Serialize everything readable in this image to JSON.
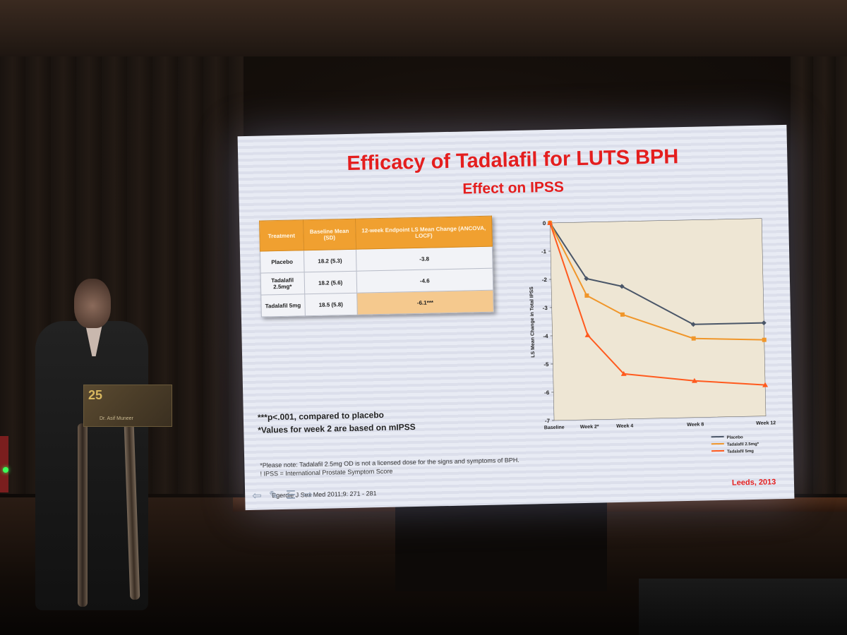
{
  "slide": {
    "title": "Efficacy of Tadalafil for LUTS BPH",
    "subtitle": "Effect on IPSS",
    "footnote_significance": "***p<.001, compared to placebo",
    "footnote_mipss": "*Values for week 2 are based on mIPSS",
    "note_dose": "*Please note: Tadalafil 2.5mg OD is not a licensed dose for the signs and symptoms of BPH.",
    "note_ipss": "! IPSS = International Prostate Symptom Score",
    "reference": "Egerdie J Sex Med 2011;9: 271 - 281",
    "credit": "Leeds, 2013"
  },
  "table": {
    "headers": [
      "Treatment",
      "Baseline Mean (SD)",
      "12-week Endpoint LS Mean Change (ANCOVA, LOCF)"
    ],
    "rows": [
      [
        "Placebo",
        "18.2 (5.3)",
        "-3.8"
      ],
      [
        "Tadalafil 2.5mg*",
        "18.2 (5.6)",
        "-4.6"
      ],
      [
        "Tadalafil 5mg",
        "18.5 (5.8)",
        "-6.1***"
      ]
    ]
  },
  "podium": {
    "sign_number": "25",
    "sign_name": "Dr. Asif Muneer"
  },
  "chart_data": {
    "type": "line",
    "x": [
      "Baseline",
      "Week 2*",
      "Week 4",
      "Week 8",
      "Week 12"
    ],
    "x_weeks": [
      0,
      2,
      4,
      8,
      12
    ],
    "ylabel": "LS Mean Change in Total IPSS",
    "ylim": [
      -7,
      0
    ],
    "yticks": [
      0,
      -1,
      -2,
      -3,
      -4,
      -5,
      -6,
      -7
    ],
    "legend_position": "bottom-right",
    "series": [
      {
        "name": "Placebo",
        "color": "#4a5668",
        "marker": "diamond",
        "values": [
          0,
          -2.0,
          -2.3,
          -3.7,
          -3.7
        ]
      },
      {
        "name": "Tadalafil 2.5mg*",
        "color": "#f0962a",
        "marker": "square",
        "values": [
          0,
          -2.6,
          -3.3,
          -4.2,
          -4.3
        ]
      },
      {
        "name": "Tadalafil 5mg",
        "color": "#ff5a1e",
        "marker": "triangle",
        "values": [
          0,
          -4.0,
          -5.4,
          -5.7,
          -5.9
        ]
      }
    ]
  }
}
